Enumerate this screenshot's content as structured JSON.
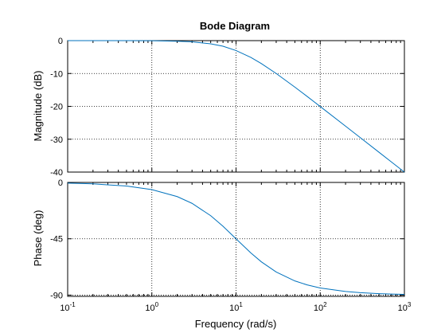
{
  "chart_data": {
    "type": "line",
    "title": "Bode Diagram",
    "xlabel": "Frequency  (rad/s)",
    "x_scale": "log",
    "xlim": [
      0.1,
      1000
    ],
    "x_ticks": [
      {
        "base": "10",
        "exp": "-1"
      },
      {
        "base": "10",
        "exp": "0"
      },
      {
        "base": "10",
        "exp": "1"
      },
      {
        "base": "10",
        "exp": "2"
      },
      {
        "base": "10",
        "exp": "3"
      }
    ],
    "grid": true,
    "line_color": "#0072bd",
    "subplots": [
      {
        "name": "magnitude",
        "ylabel": "Magnitude (dB)",
        "ylim": [
          -40,
          0
        ],
        "y_ticks": [
          "0",
          "-10",
          "-20",
          "-30",
          "-40"
        ],
        "x": [
          0.1,
          0.2,
          0.5,
          1,
          2,
          3,
          5,
          7,
          10,
          15,
          20,
          30,
          50,
          70,
          100,
          200,
          300,
          500,
          700,
          1000
        ],
        "values": [
          0,
          0,
          -0.01,
          -0.04,
          -0.17,
          -0.37,
          -0.97,
          -1.7,
          -3.01,
          -5.1,
          -6.99,
          -10.0,
          -14.15,
          -16.99,
          -20.04,
          -26.03,
          -29.55,
          -33.98,
          -36.9,
          -40.0
        ]
      },
      {
        "name": "phase",
        "ylabel": "Phase (deg)",
        "ylim": [
          -91,
          0
        ],
        "y_ticks": [
          "0",
          "-45",
          "-90"
        ],
        "x": [
          0.1,
          0.2,
          0.5,
          1,
          2,
          3,
          5,
          7,
          10,
          15,
          20,
          30,
          50,
          70,
          100,
          200,
          300,
          500,
          700,
          1000
        ],
        "values": [
          -0.57,
          -1.15,
          -2.86,
          -5.71,
          -11.31,
          -16.7,
          -26.57,
          -34.99,
          -45.0,
          -56.31,
          -63.43,
          -71.57,
          -78.69,
          -81.87,
          -84.29,
          -87.14,
          -88.09,
          -88.85,
          -89.18,
          -89.43
        ]
      }
    ]
  }
}
